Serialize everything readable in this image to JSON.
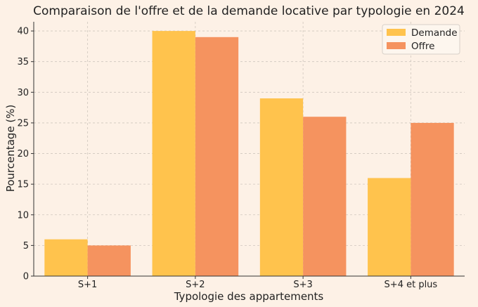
{
  "chart_data": {
    "type": "bar",
    "title": "Comparaison de l'offre et de la demande locative par typologie en 2024",
    "xlabel": "Typologie des appartements",
    "ylabel": "Pourcentage (%)",
    "categories": [
      "S+1",
      "S+2",
      "S+3",
      "S+4 et plus"
    ],
    "series": [
      {
        "name": "Demande",
        "values": [
          6,
          40,
          29,
          16
        ],
        "color": "#ffc34d"
      },
      {
        "name": "Offre",
        "values": [
          5,
          39,
          26,
          25
        ],
        "color": "#f5935f"
      }
    ],
    "ylim": [
      0,
      41.5
    ],
    "yticks": [
      0,
      5,
      10,
      15,
      20,
      25,
      30,
      35,
      40
    ],
    "grid": true,
    "legend_position": "top-right",
    "background": "#fdf1e6"
  }
}
